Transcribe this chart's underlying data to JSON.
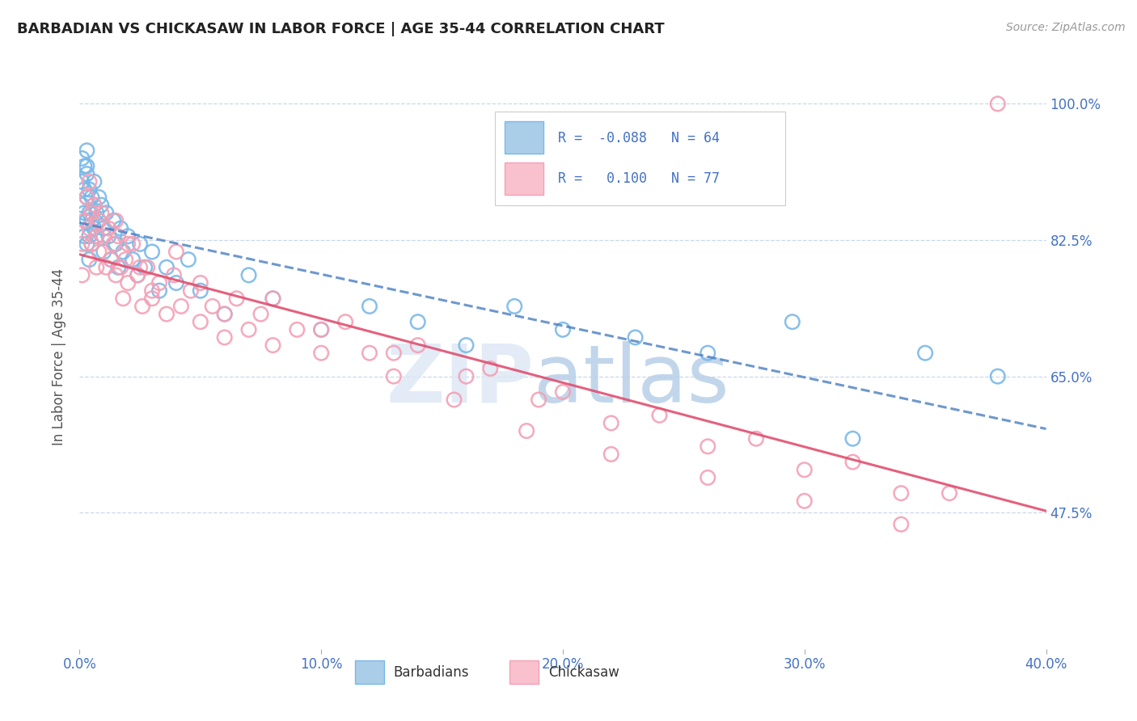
{
  "title": "BARBADIAN VS CHICKASAW IN LABOR FORCE | AGE 35-44 CORRELATION CHART",
  "source": "Source: ZipAtlas.com",
  "ylabel": "In Labor Force | Age 35-44",
  "xlim": [
    0.0,
    0.4
  ],
  "ylim": [
    0.3,
    1.05
  ],
  "yticks": [
    0.475,
    0.65,
    0.825,
    1.0
  ],
  "ytick_labels": [
    "47.5%",
    "65.0%",
    "82.5%",
    "100.0%"
  ],
  "xtick_labels": [
    "0.0%",
    "10.0%",
    "20.0%",
    "30.0%",
    "40.0%"
  ],
  "xticks": [
    0.0,
    0.1,
    0.2,
    0.3,
    0.4
  ],
  "barbadian_R": -0.088,
  "barbadian_N": 64,
  "chickasaw_R": 0.1,
  "chickasaw_N": 77,
  "barbadian_color": "#7ab8e8",
  "chickasaw_color": "#f4a0b5",
  "trend_barbadian_color": "#4a7fc1",
  "trend_chickasaw_color": "#e05070",
  "background_color": "#ffffff",
  "watermark_zip": "ZIP",
  "watermark_atlas": "atlas",
  "watermark_color_zip": "#d0dff0",
  "watermark_color_atlas": "#b8cce8",
  "barbadian_x": [
    0.001,
    0.001,
    0.001,
    0.002,
    0.002,
    0.002,
    0.002,
    0.003,
    0.003,
    0.003,
    0.003,
    0.003,
    0.003,
    0.004,
    0.004,
    0.004,
    0.004,
    0.005,
    0.005,
    0.005,
    0.006,
    0.006,
    0.006,
    0.007,
    0.007,
    0.008,
    0.008,
    0.009,
    0.01,
    0.01,
    0.011,
    0.012,
    0.013,
    0.014,
    0.015,
    0.016,
    0.017,
    0.018,
    0.02,
    0.022,
    0.024,
    0.025,
    0.027,
    0.03,
    0.033,
    0.036,
    0.04,
    0.045,
    0.05,
    0.06,
    0.07,
    0.08,
    0.1,
    0.12,
    0.14,
    0.16,
    0.18,
    0.2,
    0.23,
    0.26,
    0.295,
    0.32,
    0.35,
    0.38
  ],
  "barbadian_y": [
    0.93,
    0.9,
    0.87,
    0.92,
    0.89,
    0.86,
    0.83,
    0.91,
    0.88,
    0.85,
    0.82,
    0.94,
    0.92,
    0.89,
    0.86,
    0.83,
    0.8,
    0.88,
    0.85,
    0.82,
    0.9,
    0.87,
    0.84,
    0.86,
    0.83,
    0.88,
    0.85,
    0.87,
    0.84,
    0.81,
    0.86,
    0.83,
    0.8,
    0.85,
    0.82,
    0.79,
    0.84,
    0.81,
    0.83,
    0.8,
    0.78,
    0.82,
    0.79,
    0.81,
    0.76,
    0.79,
    0.77,
    0.8,
    0.76,
    0.73,
    0.78,
    0.75,
    0.71,
    0.74,
    0.72,
    0.69,
    0.74,
    0.71,
    0.7,
    0.68,
    0.72,
    0.57,
    0.68,
    0.65
  ],
  "chickasaw_x": [
    0.001,
    0.001,
    0.002,
    0.003,
    0.004,
    0.004,
    0.005,
    0.005,
    0.006,
    0.007,
    0.007,
    0.008,
    0.008,
    0.009,
    0.01,
    0.011,
    0.012,
    0.013,
    0.014,
    0.015,
    0.016,
    0.017,
    0.018,
    0.019,
    0.02,
    0.022,
    0.024,
    0.026,
    0.028,
    0.03,
    0.033,
    0.036,
    0.039,
    0.042,
    0.046,
    0.05,
    0.055,
    0.06,
    0.065,
    0.07,
    0.075,
    0.08,
    0.09,
    0.1,
    0.11,
    0.12,
    0.13,
    0.14,
    0.155,
    0.17,
    0.185,
    0.2,
    0.22,
    0.24,
    0.26,
    0.28,
    0.3,
    0.32,
    0.34,
    0.36,
    0.015,
    0.02,
    0.025,
    0.03,
    0.04,
    0.05,
    0.06,
    0.08,
    0.1,
    0.13,
    0.16,
    0.19,
    0.22,
    0.26,
    0.3,
    0.34,
    0.38
  ],
  "chickasaw_y": [
    0.82,
    0.78,
    0.85,
    0.88,
    0.84,
    0.9,
    0.86,
    0.82,
    0.87,
    0.83,
    0.79,
    0.85,
    0.81,
    0.86,
    0.83,
    0.79,
    0.84,
    0.8,
    0.82,
    0.78,
    0.83,
    0.79,
    0.75,
    0.8,
    0.77,
    0.82,
    0.78,
    0.74,
    0.79,
    0.75,
    0.77,
    0.73,
    0.78,
    0.74,
    0.76,
    0.72,
    0.74,
    0.7,
    0.75,
    0.71,
    0.73,
    0.69,
    0.71,
    0.68,
    0.72,
    0.68,
    0.65,
    0.69,
    0.62,
    0.66,
    0.58,
    0.63,
    0.55,
    0.6,
    0.52,
    0.57,
    0.49,
    0.54,
    0.46,
    0.5,
    0.85,
    0.82,
    0.79,
    0.76,
    0.81,
    0.77,
    0.73,
    0.75,
    0.71,
    0.68,
    0.65,
    0.62,
    0.59,
    0.56,
    0.53,
    0.5,
    1.0
  ]
}
